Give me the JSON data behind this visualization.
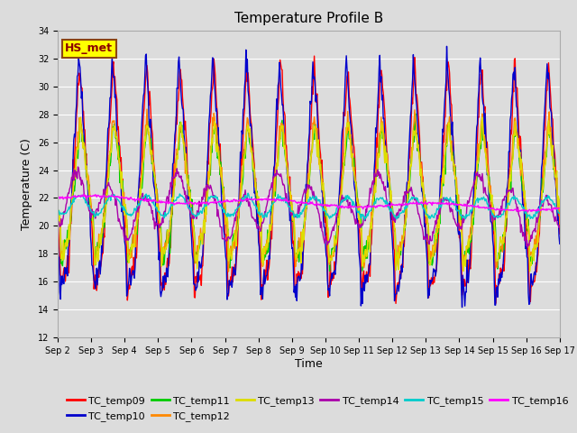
{
  "title": "Temperature Profile B",
  "xlabel": "Time",
  "ylabel": "Temperature (C)",
  "ylim": [
    12,
    34
  ],
  "xlim_days": [
    0,
    15
  ],
  "background_color": "#dcdcdc",
  "figure_bg": "#dcdcdc",
  "grid_color": "white",
  "hs_met_label": "HS_met",
  "hs_met_box_color": "#ffff00",
  "hs_met_text_color": "#8b0000",
  "hs_met_border_color": "#8b4513",
  "series_colors": {
    "TC_temp09": "#ff0000",
    "TC_temp10": "#0000cc",
    "TC_temp11": "#00cc00",
    "TC_temp12": "#ff8800",
    "TC_temp13": "#dddd00",
    "TC_temp14": "#aa00aa",
    "TC_temp15": "#00cccc",
    "TC_temp16": "#ff00ff"
  },
  "x_tick_labels": [
    "Sep 2",
    "Sep 3",
    "Sep 4",
    "Sep 5",
    "Sep 6",
    "Sep 7",
    "Sep 8",
    "Sep 9",
    "Sep 10",
    "Sep 11",
    "Sep 12",
    "Sep 13",
    "Sep 14",
    "Sep 15",
    "Sep 16",
    "Sep 17"
  ],
  "x_tick_positions": [
    0,
    1,
    2,
    3,
    4,
    5,
    6,
    7,
    8,
    9,
    10,
    11,
    12,
    13,
    14,
    15
  ],
  "title_fontsize": 11,
  "axis_fontsize": 9,
  "tick_fontsize": 7,
  "legend_fontsize": 8,
  "line_width": 1.0
}
